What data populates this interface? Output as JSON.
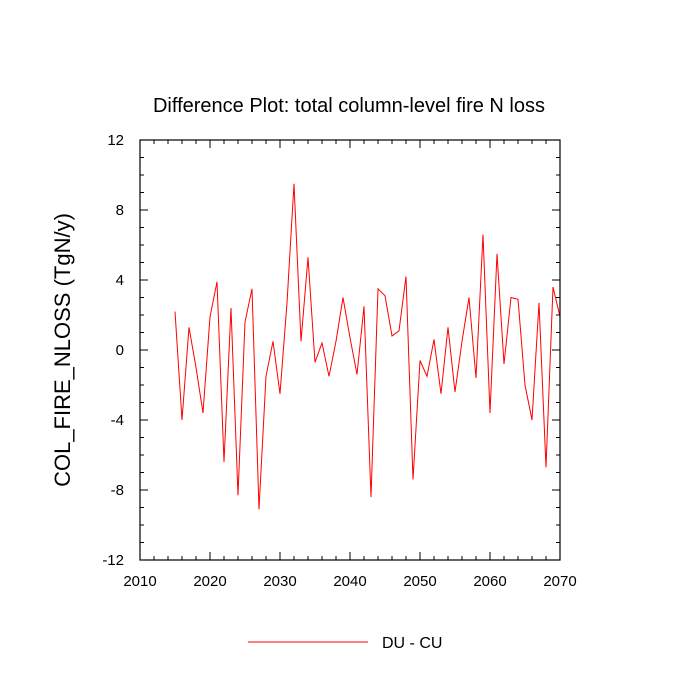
{
  "chart_data": {
    "type": "line",
    "title": "Difference Plot: total column-level fire N loss",
    "xlabel": "",
    "ylabel": "COL_FIRE_NLOSS  (TgN/y)",
    "xlim": [
      2010,
      2070
    ],
    "ylim": [
      -12,
      12
    ],
    "xticks": [
      2010,
      2020,
      2030,
      2040,
      2050,
      2060,
      2070
    ],
    "yticks": [
      -12,
      -8,
      -4,
      0,
      4,
      8,
      12
    ],
    "grid": false,
    "legend_position": "bottom-center",
    "series": [
      {
        "name": "DU - CU",
        "color": "#ff0000",
        "x": [
          2015,
          2016,
          2017,
          2018,
          2019,
          2020,
          2021,
          2022,
          2023,
          2024,
          2025,
          2026,
          2027,
          2028,
          2029,
          2030,
          2031,
          2032,
          2033,
          2034,
          2035,
          2036,
          2037,
          2038,
          2039,
          2040,
          2041,
          2042,
          2043,
          2044,
          2045,
          2046,
          2047,
          2048,
          2049,
          2050,
          2051,
          2052,
          2053,
          2054,
          2055,
          2056,
          2057,
          2058,
          2059,
          2060,
          2061,
          2062,
          2063,
          2064,
          2065,
          2066,
          2067,
          2068,
          2069,
          2070
        ],
        "y": [
          2.2,
          -4.0,
          1.3,
          -1.0,
          -3.6,
          1.9,
          3.9,
          -6.4,
          2.4,
          -8.3,
          1.6,
          3.5,
          -9.1,
          -1.5,
          0.5,
          -2.5,
          2.7,
          9.5,
          0.5,
          5.3,
          -0.7,
          0.4,
          -1.5,
          0.5,
          3.0,
          0.7,
          -1.4,
          2.5,
          -8.4,
          3.5,
          3.1,
          0.8,
          1.1,
          4.2,
          -7.4,
          -0.6,
          -1.5,
          0.6,
          -2.5,
          1.3,
          -2.4,
          0.5,
          3.0,
          -1.6,
          6.6,
          -3.6,
          5.5,
          -0.8,
          3.0,
          2.9,
          -2.0,
          -4.0,
          2.7,
          -6.7,
          3.6,
          1.9
        ]
      }
    ]
  }
}
